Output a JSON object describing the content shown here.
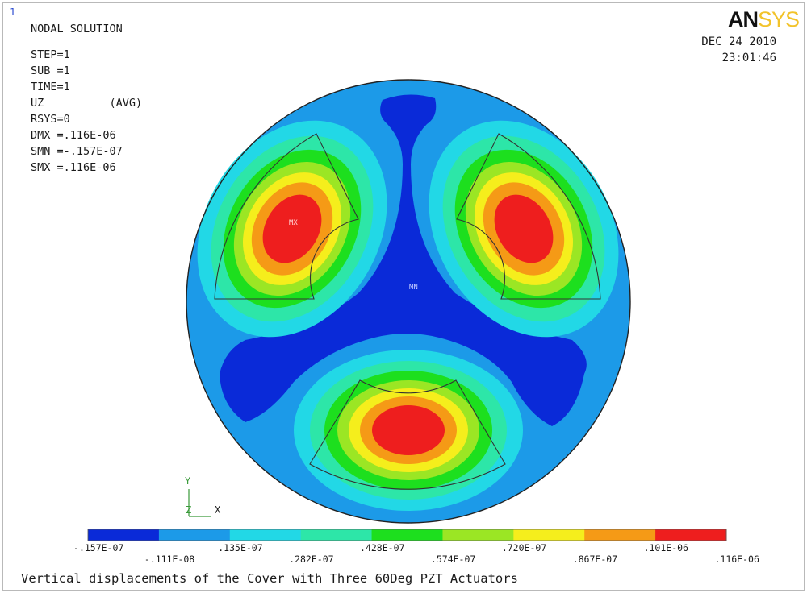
{
  "window_number": "1",
  "logo": {
    "part1": "AN",
    "part2": "SYS"
  },
  "header": {
    "date": "DEC 24 2010",
    "time": "23:01:46",
    "lines": [
      "NODAL SOLUTION",
      "STEP=1",
      "SUB =1",
      "TIME=1",
      "UZ          (AVG)",
      "RSYS=0",
      "DMX =.116E-06",
      "SMN =-.157E-07",
      "SMX =.116E-06"
    ]
  },
  "markers": {
    "max_label": "MX",
    "min_label": "MN"
  },
  "triad": {
    "y": "Y",
    "z": "Z",
    "x": "X"
  },
  "legend": {
    "colors": [
      "#0a2ad8",
      "#1c9ae8",
      "#22d8e6",
      "#2de6a8",
      "#1ddf1e",
      "#9be624",
      "#f5ee1c",
      "#f59a16",
      "#ee1e1e"
    ],
    "ticks_upper": [
      "-.157E-07",
      ".135E-07",
      ".428E-07",
      ".720E-07",
      ".101E-06"
    ],
    "ticks_lower": [
      "-.111E-08",
      ".282E-07",
      ".574E-07",
      ".867E-07",
      ".116E-06"
    ]
  },
  "caption": "Vertical displacements of the Cover with Three 60Deg PZT Actuators"
}
